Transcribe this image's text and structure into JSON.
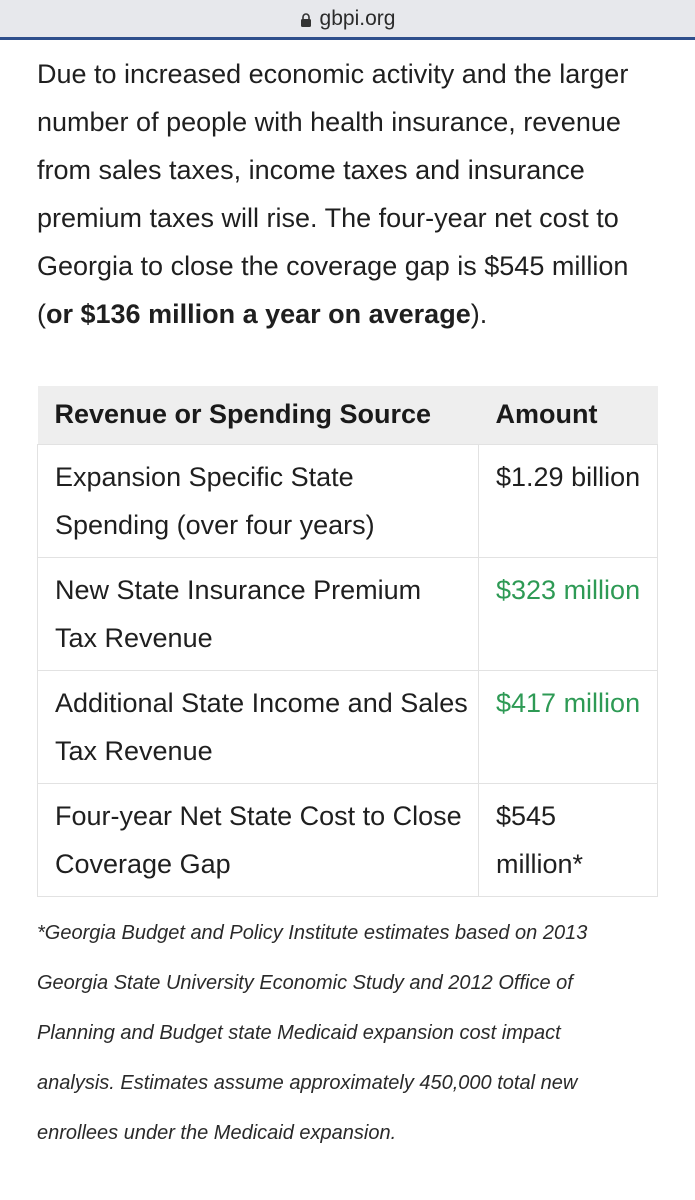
{
  "browser": {
    "host": "gbpi.org",
    "icon": "lock-icon"
  },
  "article": {
    "para_part1": "Due to increased economic activity and the larger number of people with health insurance, revenue from sales taxes, income taxes and insurance premium taxes will rise. The four-year net cost to Georgia to close the coverage gap is $545 million (",
    "para_bold": "or $136 million a year on average",
    "para_end": ")."
  },
  "table": {
    "headers": [
      "Revenue or Spending Source",
      "Amount"
    ],
    "rows": [
      {
        "source": "Expansion Specific State Spending (over four years)",
        "amount": "$1.29 billion",
        "color": "#1f1f1f"
      },
      {
        "source": "New State Insurance Premium Tax Revenue",
        "amount": "$323 million",
        "color": "#2e9a55"
      },
      {
        "source": "Additional State Income and Sales Tax Revenue",
        "amount": "$417 million",
        "color": "#2e9a55"
      },
      {
        "source": "Four-year Net State Cost to Close Coverage Gap",
        "amount": "$545 million*",
        "color": "#1f1f1f"
      }
    ]
  },
  "footnote": "*Georgia Budget and Policy Institute estimates based on 2013 Georgia State University Economic Study and 2012 Office of Planning and Budget state Medicaid expansion cost impact analysis. Estimates assume approximately 450,000 total new enrollees under the Medicaid expansion."
}
